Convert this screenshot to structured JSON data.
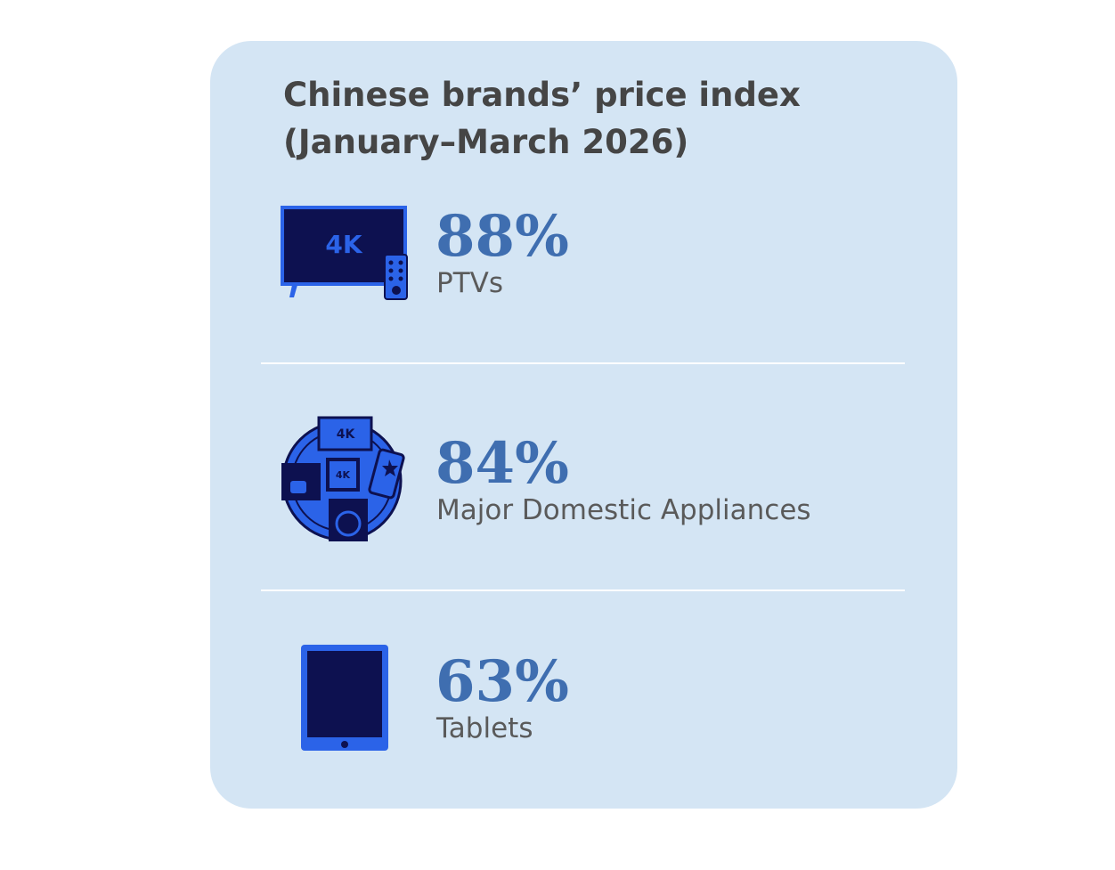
{
  "title_lines": [
    "Chinese brands’ price index",
    "(January–March 2026)"
  ],
  "items": [
    {
      "value": "88%",
      "label": "PTVs",
      "icon_texts": [
        "4K"
      ]
    },
    {
      "value": "84%",
      "label": "Major Domestic Appliances",
      "icon_texts": [
        "4K",
        "4K"
      ]
    },
    {
      "value": "63%",
      "label": "Tablets",
      "icon_texts": []
    }
  ]
}
